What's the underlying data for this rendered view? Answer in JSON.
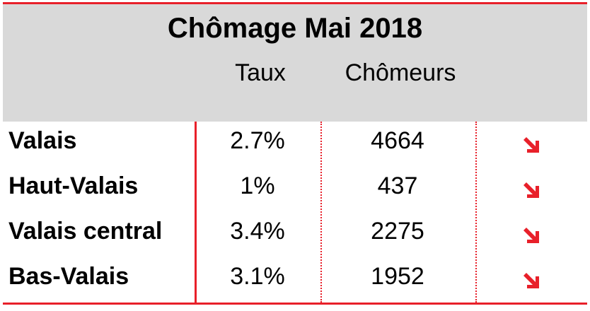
{
  "title": "Chômage Mai 2018",
  "columns": {
    "taux": "Taux",
    "chomeurs": "Chômeurs"
  },
  "accent_color": "#e8202a",
  "header_bg": "#d9d9d9",
  "rows": [
    {
      "region": "Valais",
      "taux": "2.7%",
      "chomeurs": "4664",
      "trend": "down-right-arrow-icon"
    },
    {
      "region": "Haut-Valais",
      "taux": "1%",
      "chomeurs": "437",
      "trend": "down-right-arrow-icon"
    },
    {
      "region": "Valais central",
      "taux": "3.4%",
      "chomeurs": "2275",
      "trend": "down-right-arrow-icon"
    },
    {
      "region": "Bas-Valais",
      "taux": "3.1%",
      "chomeurs": "1952",
      "trend": "down-right-arrow-icon"
    }
  ]
}
